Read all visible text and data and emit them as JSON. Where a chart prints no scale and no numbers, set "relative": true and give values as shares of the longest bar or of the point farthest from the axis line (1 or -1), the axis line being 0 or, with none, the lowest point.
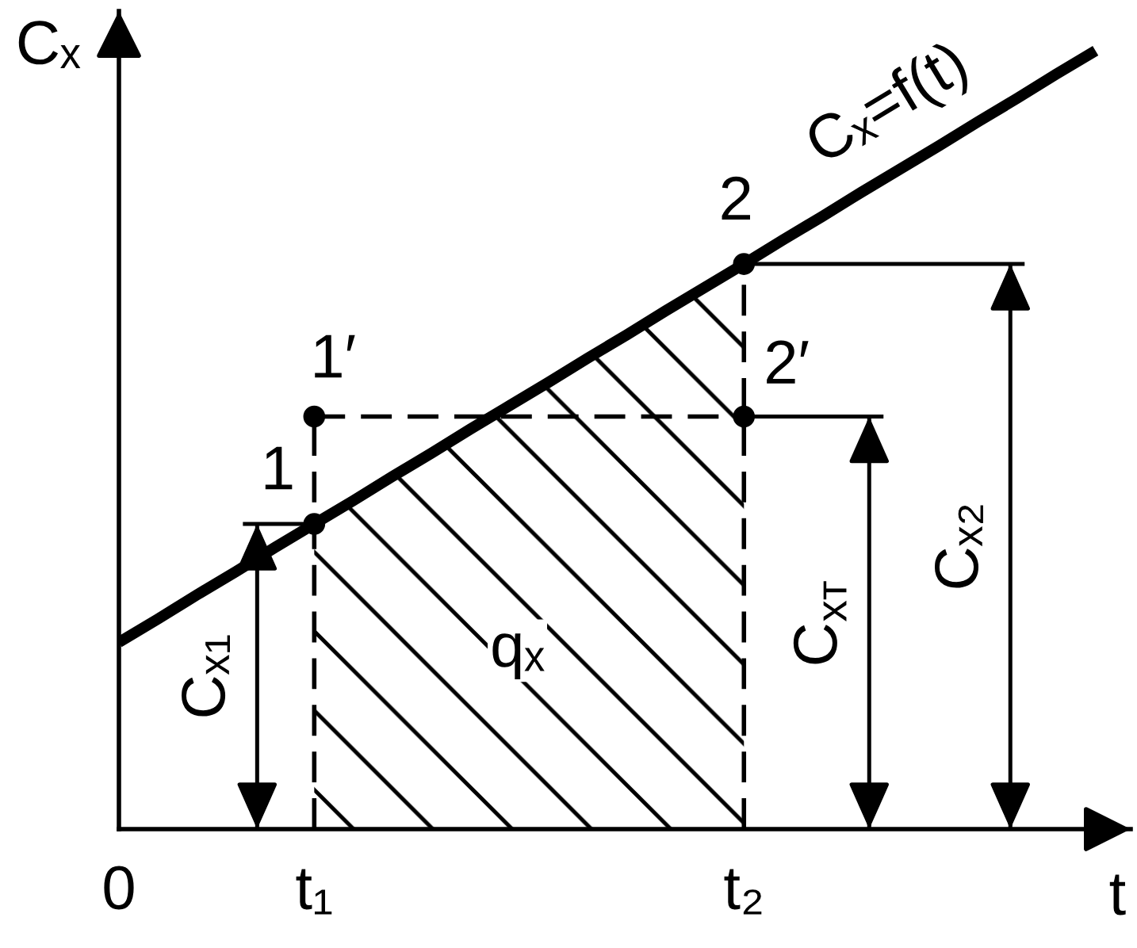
{
  "chart_data": {
    "type": "line",
    "relative": true,
    "xlabel": "t",
    "ylabel": "Cₓ",
    "categories": [
      "0",
      null,
      null,
      null,
      null,
      "t₁",
      null,
      null,
      null,
      null,
      null,
      null,
      null,
      null,
      null,
      null,
      "t₂",
      null,
      null,
      null,
      null,
      null,
      null,
      null,
      null,
      null
    ],
    "tick_labels": "x",
    "series": [
      {
        "type": "area",
        "name": "qₓ",
        "color": "#000000",
        "values": [
          null,
          null,
          null,
          null,
          null,
          0.392,
          0.422,
          0.453,
          0.483,
          0.514,
          0.544,
          0.574,
          0.605,
          0.635,
          0.666,
          0.696,
          0.726,
          null,
          null,
          null,
          null,
          null,
          null,
          null,
          null,
          null
        ]
      },
      {
        "type": "line",
        "line_style": "dashed",
        "color": "#000000",
        "values": [
          null,
          null,
          null,
          null,
          null,
          0.53,
          0.53,
          0.53,
          0.53,
          0.53,
          0.53,
          0.53,
          0.53,
          0.53,
          0.53,
          0.53,
          0.53,
          null,
          null,
          null,
          null,
          null,
          null,
          null,
          null,
          null
        ]
      },
      {
        "name": "Cₓ=f(t)",
        "color": "#000000",
        "values": [
          0.24,
          0.27,
          0.301,
          0.331,
          0.362,
          0.392,
          0.422,
          0.453,
          0.483,
          0.514,
          0.544,
          0.574,
          0.605,
          0.635,
          0.666,
          0.696,
          0.726,
          0.757,
          0.787,
          0.818,
          0.848,
          0.878,
          0.909,
          0.939,
          0.97,
          1.0
        ]
      },
      {
        "type": "scatter",
        "name": "1",
        "marker": "circle",
        "color": "#000000",
        "values": [
          null,
          null,
          null,
          null,
          null,
          0.392,
          null,
          null,
          null,
          null,
          null,
          null,
          null,
          null,
          null,
          null,
          null,
          null,
          null,
          null,
          null,
          null,
          null,
          null,
          null,
          null
        ]
      },
      {
        "type": "lollipop",
        "name": "1′",
        "marker": "circle",
        "color": "#000000",
        "line_style": "dashed",
        "values": [
          null,
          null,
          null,
          null,
          null,
          0.53,
          null,
          null,
          null,
          null,
          null,
          null,
          null,
          null,
          null,
          null,
          null,
          null,
          null,
          null,
          null,
          null,
          null,
          null,
          null,
          null
        ]
      },
      {
        "type": "lollipop",
        "name": "2",
        "marker": "circle",
        "color": "#000000",
        "line_style": "dashed",
        "values": [
          null,
          null,
          null,
          null,
          null,
          null,
          null,
          null,
          null,
          null,
          null,
          null,
          null,
          null,
          null,
          null,
          0.726,
          null,
          null,
          null,
          null,
          null,
          null,
          null,
          null,
          null
        ]
      },
      {
        "type": "scatter",
        "name": "2′",
        "marker": "circle",
        "color": "#000000",
        "values": [
          null,
          null,
          null,
          null,
          null,
          null,
          null,
          null,
          null,
          null,
          null,
          null,
          null,
          null,
          null,
          null,
          0.53,
          null,
          null,
          null,
          null,
          null,
          null,
          null,
          null,
          null
        ]
      }
    ],
    "annotations": [
      "Cₓ₁",
      "C$_{xт}$",
      "Cₓ₂"
    ]
  }
}
